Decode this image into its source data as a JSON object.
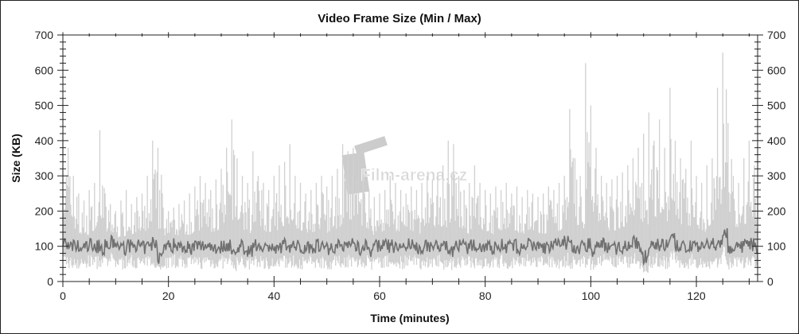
{
  "chart_data": {
    "type": "bar",
    "title": "Video Frame Size (Min / Max)",
    "xlabel": "Time (minutes)",
    "ylabel": "Size (KB)",
    "xlim": [
      0,
      131.6
    ],
    "ylim": [
      0,
      700
    ],
    "xticks": [
      0,
      20,
      40,
      60,
      80,
      100,
      120
    ],
    "yticks": [
      0,
      100,
      200,
      300,
      400,
      500,
      600,
      700
    ],
    "grid": false,
    "watermark": "Film-arena.cz",
    "colors": {
      "max": "#d0d0d0",
      "min": "#707070"
    },
    "x": [
      0,
      1,
      2,
      3,
      4,
      5,
      6,
      7,
      8,
      9,
      10,
      11,
      12,
      13,
      14,
      15,
      16,
      17,
      18,
      19,
      20,
      21,
      22,
      23,
      24,
      25,
      26,
      27,
      28,
      29,
      30,
      31,
      32,
      33,
      34,
      35,
      36,
      37,
      38,
      39,
      40,
      41,
      42,
      43,
      44,
      45,
      46,
      47,
      48,
      49,
      50,
      51,
      52,
      53,
      54,
      55,
      56,
      57,
      58,
      59,
      60,
      61,
      62,
      63,
      64,
      65,
      66,
      67,
      68,
      69,
      70,
      71,
      72,
      73,
      74,
      75,
      76,
      77,
      78,
      79,
      80,
      81,
      82,
      83,
      84,
      85,
      86,
      87,
      88,
      89,
      90,
      91,
      92,
      93,
      94,
      95,
      96,
      97,
      98,
      99,
      100,
      101,
      102,
      103,
      104,
      105,
      106,
      107,
      108,
      109,
      110,
      111,
      112,
      113,
      114,
      115,
      116,
      117,
      118,
      119,
      120,
      121,
      122,
      123,
      124,
      125,
      126,
      127,
      128,
      129,
      130,
      131
    ],
    "series": [
      {
        "name": "Max",
        "values": [
          420,
          380,
          300,
          250,
          230,
          260,
          280,
          430,
          250,
          220,
          200,
          230,
          260,
          220,
          240,
          250,
          300,
          400,
          380,
          210,
          200,
          210,
          220,
          230,
          250,
          270,
          300,
          280,
          260,
          290,
          320,
          380,
          460,
          350,
          300,
          280,
          370,
          300,
          280,
          260,
          300,
          330,
          340,
          390,
          300,
          280,
          250,
          260,
          280,
          300,
          270,
          300,
          320,
          390,
          370,
          380,
          350,
          300,
          260,
          240,
          250,
          260,
          300,
          280,
          260,
          250,
          270,
          260,
          280,
          300,
          290,
          310,
          330,
          400,
          390,
          300,
          260,
          280,
          330,
          280,
          260,
          250,
          270,
          260,
          280,
          250,
          270,
          240,
          260,
          250,
          240,
          250,
          270,
          260,
          280,
          300,
          490,
          350,
          300,
          620,
          500,
          380,
          300,
          280,
          290,
          300,
          310,
          330,
          350,
          380,
          420,
          480,
          400,
          460,
          380,
          550,
          400,
          350,
          320,
          400,
          300,
          280,
          330,
          350,
          550,
          650,
          450,
          300,
          280,
          350,
          400,
          330
        ]
      },
      {
        "name": "Min",
        "values": [
          110,
          95,
          100,
          90,
          100,
          105,
          100,
          95,
          100,
          110,
          100,
          95,
          100,
          105,
          100,
          95,
          100,
          110,
          70,
          100,
          100,
          105,
          100,
          100,
          95,
          100,
          100,
          105,
          100,
          95,
          100,
          105,
          80,
          100,
          95,
          90,
          100,
          105,
          95,
          100,
          85,
          100,
          105,
          100,
          100,
          95,
          100,
          100,
          105,
          100,
          95,
          100,
          100,
          105,
          110,
          100,
          95,
          100,
          90,
          100,
          105,
          100,
          100,
          95,
          100,
          105,
          100,
          95,
          100,
          100,
          100,
          105,
          95,
          90,
          100,
          100,
          95,
          100,
          105,
          100,
          100,
          95,
          100,
          105,
          100,
          100,
          95,
          100,
          105,
          100,
          100,
          95,
          100,
          105,
          100,
          110,
          100,
          95,
          100,
          105,
          90,
          100,
          105,
          100,
          95,
          100,
          100,
          105,
          110,
          95,
          70,
          100,
          110,
          105,
          100,
          120,
          100,
          95,
          100,
          105,
          100,
          95,
          100,
          105,
          110,
          140,
          90,
          100,
          95,
          100,
          105,
          90
        ]
      }
    ]
  }
}
